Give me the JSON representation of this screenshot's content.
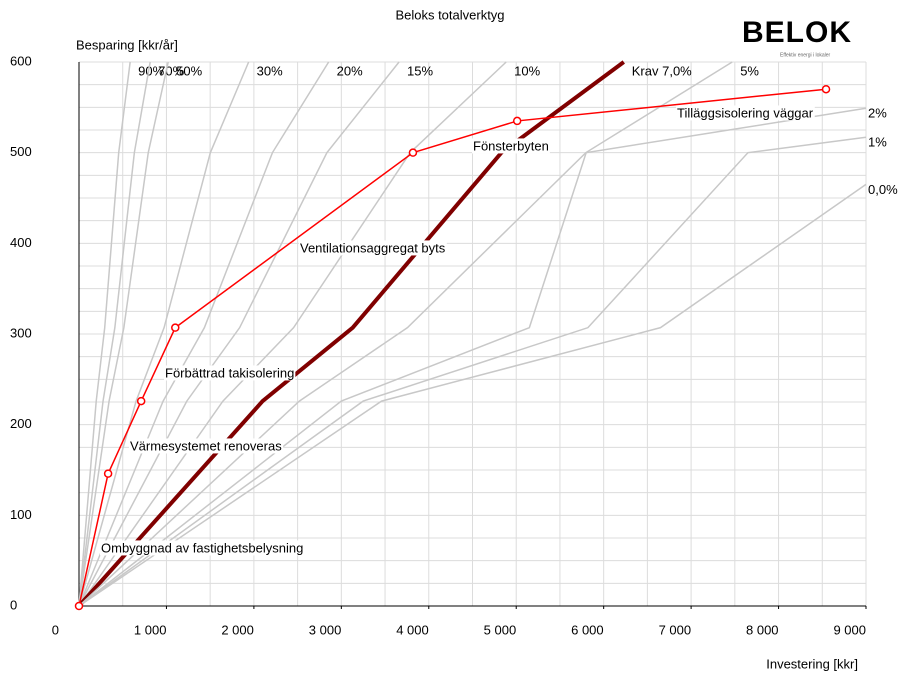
{
  "chart_data": {
    "type": "line",
    "title": "Beloks totalverktyg",
    "logo": "BELOK",
    "logo_tagline": "Effektiv energi i lokaler",
    "y_label": "Besparing [kkr/år]",
    "x_label": "Investering [kkr]",
    "xlim": [
      0,
      9000
    ],
    "ylim": [
      0,
      600
    ],
    "xticks": [
      {
        "value": 0,
        "label": "0"
      },
      {
        "value": 1000,
        "label": "1 000"
      },
      {
        "value": 2000,
        "label": "2 000"
      },
      {
        "value": 3000,
        "label": "3 000"
      },
      {
        "value": 4000,
        "label": "4 000"
      },
      {
        "value": 5000,
        "label": "5 000"
      },
      {
        "value": 6000,
        "label": "6 000"
      },
      {
        "value": 7000,
        "label": "7 000"
      },
      {
        "value": 8000,
        "label": "8 000"
      },
      {
        "value": 9000,
        "label": "9 000"
      }
    ],
    "yticks": [
      0,
      100,
      200,
      300,
      400,
      500,
      600
    ],
    "xgrid": [
      500,
      1000,
      1500,
      2000,
      2500,
      3000,
      3500,
      4000,
      4500,
      5000,
      5500,
      6000,
      6500,
      7000,
      7500,
      8000,
      8500,
      9000
    ],
    "ygrid": [
      25,
      50,
      75,
      100,
      125,
      150,
      175,
      200,
      225,
      250,
      275,
      300,
      325,
      350,
      375,
      400,
      425,
      450,
      475,
      500,
      525,
      550,
      575,
      600
    ],
    "grid": true,
    "reference_series": [
      {
        "name": "90%",
        "color": "#c8c8c8",
        "x": [
          0,
          197,
          294,
          454,
          585
        ],
        "values": [
          0,
          226,
          307,
          500,
          600
        ]
      },
      {
        "name": "70%",
        "color": "#c8c8c8",
        "x": [
          0,
          275,
          410,
          633,
          814
        ],
        "values": [
          0,
          226,
          307,
          500,
          600
        ]
      },
      {
        "name": "50%",
        "color": "#c8c8c8",
        "x": [
          0,
          344,
          513,
          792,
          1020
        ],
        "values": [
          0,
          226,
          307,
          500,
          600
        ]
      },
      {
        "name": "30%",
        "color": "#c8c8c8",
        "x": [
          0,
          653,
          973,
          1502,
          1940
        ],
        "values": [
          0,
          226,
          307,
          500,
          600
        ]
      },
      {
        "name": "20%",
        "color": "#c8c8c8",
        "x": [
          0,
          962,
          1434,
          2212,
          2855
        ],
        "values": [
          0,
          226,
          307,
          500,
          600
        ]
      },
      {
        "name": "15%",
        "color": "#c8c8c8",
        "x": [
          0,
          1233,
          1837,
          2835,
          3660
        ],
        "values": [
          0,
          226,
          307,
          500,
          600
        ]
      },
      {
        "name": "10%",
        "color": "#c8c8c8",
        "x": [
          0,
          1646,
          2454,
          3787,
          4885
        ],
        "values": [
          0,
          226,
          307,
          500,
          600
        ]
      },
      {
        "name": "Krav 7,0%",
        "color": "#800000",
        "x": [
          0,
          2100,
          3130,
          4830,
          6230
        ],
        "values": [
          0,
          226,
          307,
          500,
          600
        ]
      },
      {
        "name": "5%",
        "color": "#c8c8c8",
        "x": [
          0,
          2520,
          3756,
          5796,
          7470
        ],
        "values": [
          0,
          226,
          307,
          500,
          600
        ]
      },
      {
        "name": "2%",
        "color": "#c8c8c8",
        "x": [
          0,
          3000,
          5150,
          5800,
          9000
        ],
        "values": [
          0,
          226,
          307,
          500,
          549
        ]
      },
      {
        "name": "1%",
        "color": "#c8c8c8",
        "x": [
          0,
          3250,
          5820,
          7650,
          9000
        ],
        "values": [
          0,
          226,
          307,
          500,
          517
        ]
      },
      {
        "name": "0,0%",
        "color": "#c8c8c8",
        "x": [
          0,
          3460,
          6650,
          9000
        ],
        "values": [
          0,
          226,
          307,
          465
        ]
      }
    ],
    "series": [
      {
        "color": "#ff0000",
        "x": [
          0,
          333,
          711,
          1101,
          3819,
          5011,
          8543
        ],
        "values": [
          0,
          146,
          226,
          307,
          500,
          535,
          570
        ]
      }
    ],
    "point_labels": [
      "Ombyggnad av fastighetsbelysning",
      "Värmesystemet renoveras",
      "Förbättrad takisolering",
      "Ventilationsaggregat byts",
      "Fönsterbyten",
      "Tilläggsisolering väggar"
    ]
  }
}
